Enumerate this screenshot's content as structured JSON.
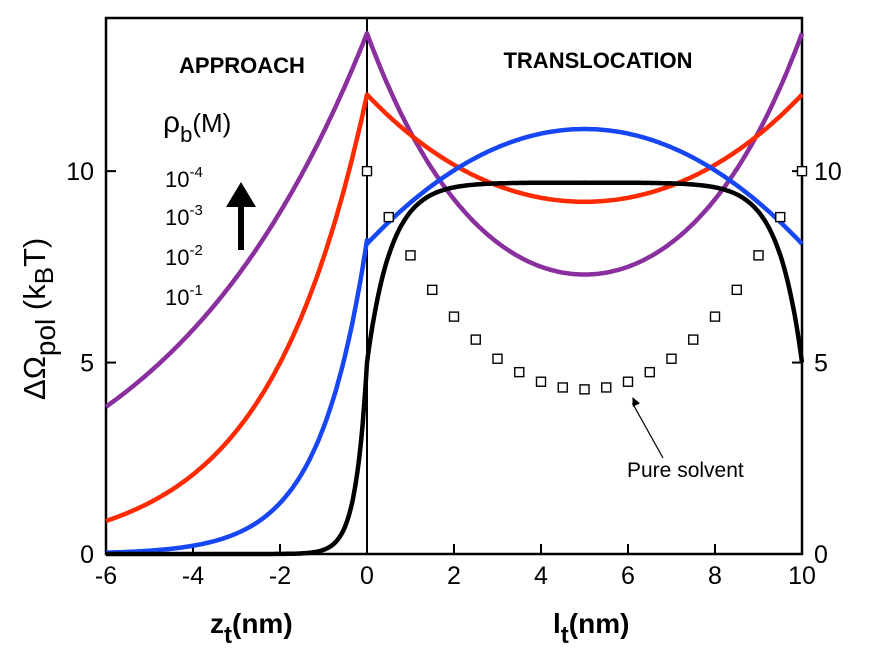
{
  "chart_data": {
    "type": "line",
    "ylabel": {
      "main": "ΔΩ",
      "sub": "pol",
      "unit_pre": " (k",
      "unit_sub": "B",
      "unit_post": "T)"
    },
    "region_labels": {
      "left": "APPROACH",
      "right": "TRANSLOCATION"
    },
    "x_axes": {
      "left": {
        "label_main": "z",
        "label_sub": "t",
        "label_post": "(nm)",
        "range": [
          -6,
          0
        ],
        "ticks": [
          -6,
          -4,
          -2,
          0
        ],
        "tick_labels": [
          "-6",
          "-4",
          "-2",
          "0"
        ]
      },
      "right": {
        "label_main": "l",
        "label_sub": "t",
        "label_post": "(nm)",
        "range": [
          0,
          10
        ],
        "ticks": [
          2,
          4,
          6,
          8,
          10
        ],
        "tick_labels": [
          "2",
          "4",
          "6",
          "8",
          "10"
        ]
      }
    },
    "ylim": [
      0,
      14
    ],
    "yticks": [
      0,
      5,
      10
    ],
    "ytick_labels": [
      "0",
      "5",
      "10"
    ],
    "legend": {
      "title_main": "ρ",
      "title_sub": "b",
      "title_post": "(M)",
      "entries": [
        {
          "base": "10",
          "exp": "-4"
        },
        {
          "base": "10",
          "exp": "-3"
        },
        {
          "base": "10",
          "exp": "-2"
        },
        {
          "base": "10",
          "exp": "-1"
        }
      ],
      "arrow": "up"
    },
    "series": [
      {
        "name": "10^-4 M",
        "color": "#8a2f9e",
        "left_peak": 13.6,
        "left_decay_nm": 4.75,
        "right_ends": 13.6,
        "right_mid": 7.3,
        "shape": "cosh",
        "shape_param": 0.6
      },
      {
        "name": "10^-3 M",
        "color": "#ff2a00",
        "left_peak": 12.0,
        "left_decay_nm": 2.28,
        "right_ends": 12.0,
        "right_mid": 9.2,
        "shape": "cosh",
        "shape_param": 1.1
      },
      {
        "name": "10^-2 M",
        "color": "#1747f5",
        "left_peak": 8.2,
        "left_decay_nm": 1.1,
        "right_ends": 8.1,
        "right_mid": 11.1,
        "shape": "parabola",
        "shape_param": 2
      },
      {
        "name": "10^-1 M",
        "color": "#000000",
        "left_peak": 5.0,
        "left_decay_nm": 0.26,
        "right_ends": 5.0,
        "right_mid": 9.7,
        "shape": "edge-exp",
        "shape_param": 0.55
      }
    ],
    "scatter": {
      "name": "Pure solvent",
      "marker": "open-square",
      "x": [
        0,
        0.5,
        1,
        1.5,
        2,
        2.5,
        3,
        3.5,
        4,
        4.5,
        5,
        5.5,
        6,
        6.5,
        7,
        7.5,
        8,
        8.5,
        9,
        9.5,
        10
      ],
      "y": [
        10.0,
        8.8,
        7.8,
        6.9,
        6.2,
        5.6,
        5.1,
        4.75,
        4.5,
        4.35,
        4.3,
        4.35,
        4.5,
        4.75,
        5.1,
        5.6,
        6.2,
        6.9,
        7.8,
        8.8,
        10.0
      ]
    },
    "annotation": {
      "text": "Pure solvent",
      "points_to_x": 6.1,
      "points_to_y": 4.1
    }
  }
}
